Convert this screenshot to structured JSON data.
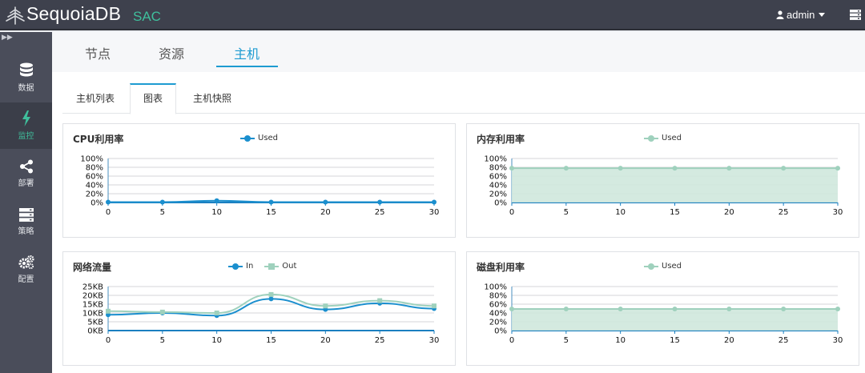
{
  "header": {
    "brand": "SequoiaDB",
    "brand_sub": "SAC",
    "user": "admin"
  },
  "sidebar": {
    "items": [
      {
        "label": "数据",
        "icon": "database-icon"
      },
      {
        "label": "监控",
        "icon": "bolt-icon"
      },
      {
        "label": "部署",
        "icon": "share-icon"
      },
      {
        "label": "策略",
        "icon": "server-icon"
      },
      {
        "label": "配置",
        "icon": "gears-icon"
      }
    ],
    "active_index": 1
  },
  "main_tabs": [
    {
      "label": "节点"
    },
    {
      "label": "资源"
    },
    {
      "label": "主机"
    }
  ],
  "main_tabs_active": 2,
  "sub_tabs": [
    {
      "label": "主机列表"
    },
    {
      "label": "图表"
    },
    {
      "label": "主机快照"
    }
  ],
  "sub_tabs_active": 1,
  "colors": {
    "accent": "#1d9bd1",
    "green": "#3fbf9c",
    "series_blue": "#1b8fce",
    "series_green": "#9fd1bd",
    "area_fill": "#cfe8dd"
  },
  "chart_data": [
    {
      "id": "cpu",
      "type": "line",
      "title": "CPU利用率",
      "series": [
        {
          "name": "Used",
          "values": [
            1,
            1,
            4,
            1,
            1,
            1,
            1
          ]
        }
      ],
      "x": [
        0,
        5,
        10,
        15,
        20,
        25,
        30
      ],
      "y_ticks": [
        "100%",
        "80%",
        "60%",
        "40%",
        "20%",
        "0%"
      ],
      "ylim": [
        0,
        100
      ],
      "grid": true
    },
    {
      "id": "memory",
      "type": "area",
      "title": "内存利用率",
      "series": [
        {
          "name": "Used",
          "values": [
            78,
            78,
            78,
            78,
            78,
            78,
            78
          ]
        }
      ],
      "x": [
        0,
        5,
        10,
        15,
        20,
        25,
        30
      ],
      "y_ticks": [
        "100%",
        "80%",
        "60%",
        "40%",
        "20%",
        "0%"
      ],
      "ylim": [
        0,
        100
      ],
      "grid": true
    },
    {
      "id": "network",
      "type": "line",
      "title": "网络流量",
      "series": [
        {
          "name": "In",
          "values": [
            9,
            10,
            8.5,
            18,
            12,
            15.5,
            12.5
          ]
        },
        {
          "name": "Out",
          "values": [
            11,
            10.5,
            10,
            20.5,
            14,
            17,
            14
          ]
        }
      ],
      "x": [
        0,
        5,
        10,
        15,
        20,
        25,
        30
      ],
      "y_ticks": [
        "25KB",
        "20KB",
        "15KB",
        "10KB",
        "5KB",
        "0KB"
      ],
      "ylim": [
        0,
        25
      ],
      "grid": true
    },
    {
      "id": "disk",
      "type": "area",
      "title": "磁盘利用率",
      "series": [
        {
          "name": "Used",
          "values": [
            49,
            49,
            49,
            49,
            49,
            49,
            49
          ]
        }
      ],
      "x": [
        0,
        5,
        10,
        15,
        20,
        25,
        30
      ],
      "y_ticks": [
        "100%",
        "80%",
        "60%",
        "40%",
        "20%",
        "0%"
      ],
      "ylim": [
        0,
        100
      ],
      "grid": true
    }
  ]
}
